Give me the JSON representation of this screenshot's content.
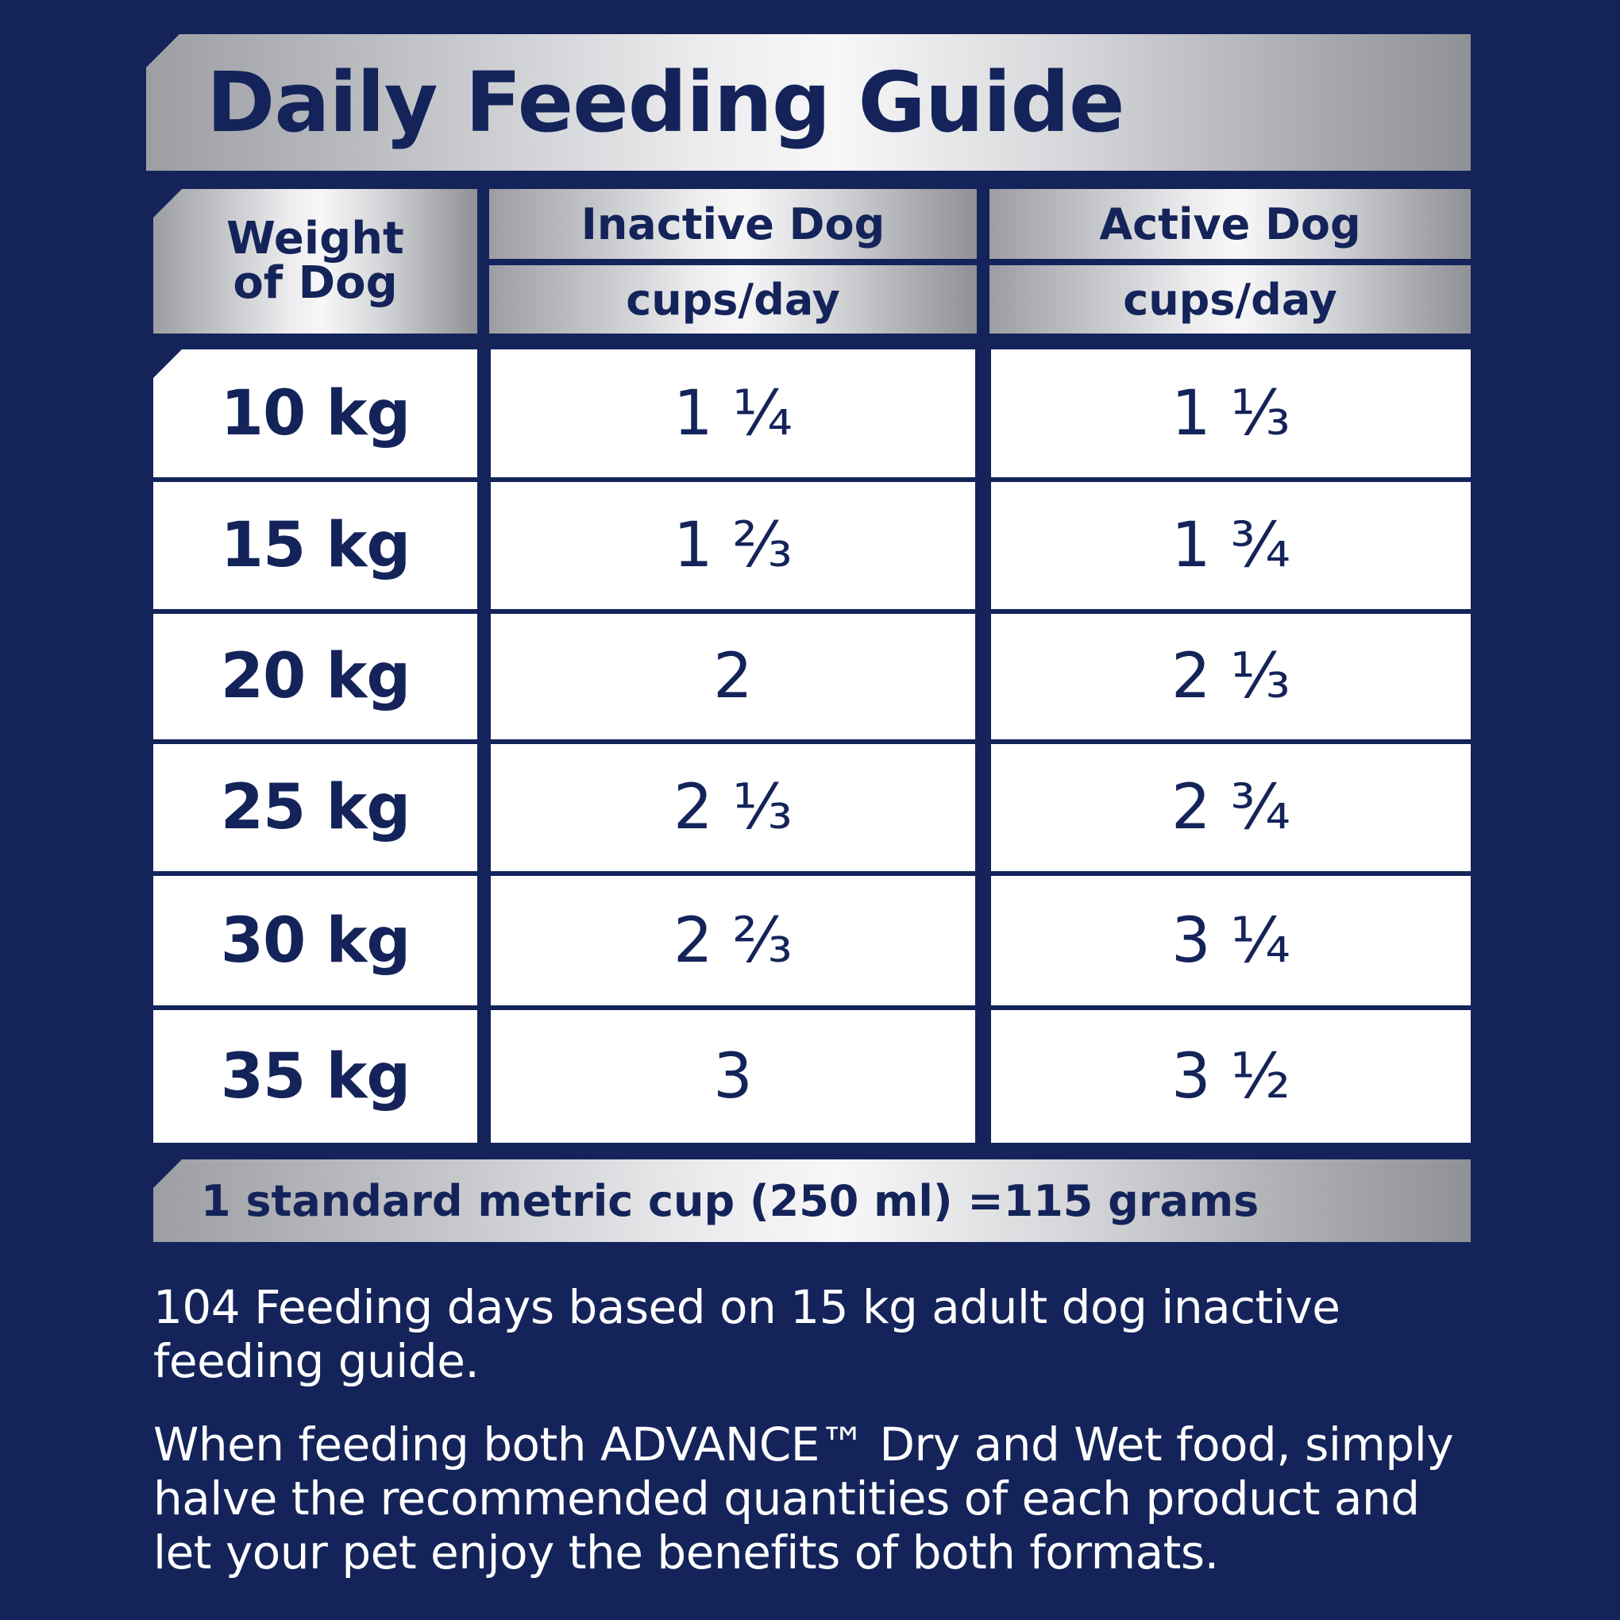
{
  "title": "Daily Feeding Guide",
  "headers": {
    "weight_line1": "Weight",
    "weight_line2": "of Dog",
    "inactive": "Inactive Dog",
    "active": "Active Dog",
    "unit_inactive": "cups/day",
    "unit_active": "cups/day"
  },
  "rows": [
    {
      "weight": "10 kg",
      "inactive": "1 ¼",
      "active": "1 ⅓"
    },
    {
      "weight": "15 kg",
      "inactive": "1 ⅔",
      "active": "1 ¾"
    },
    {
      "weight": "20 kg",
      "inactive": "2",
      "active": "2 ⅓"
    },
    {
      "weight": "25 kg",
      "inactive": "2 ⅓",
      "active": "2 ¾"
    },
    {
      "weight": "30 kg",
      "inactive": "2 ⅔",
      "active": "3 ¼"
    },
    {
      "weight": "35 kg",
      "inactive": "3",
      "active": "3 ½"
    }
  ],
  "footnote": "1 standard metric cup (250 ml) =115 grams",
  "paragraphs": [
    "104 Feeding days based on 15 kg adult dog inactive feeding guide.",
    "When feeding both ADVANCE™ Dry and Wet food, simply halve the recommended quantities of each product and let your pet enjoy the benefits of both formats."
  ],
  "colors": {
    "background": "#14245a",
    "text_dark": "#14245a",
    "cell": "#ffffff"
  }
}
